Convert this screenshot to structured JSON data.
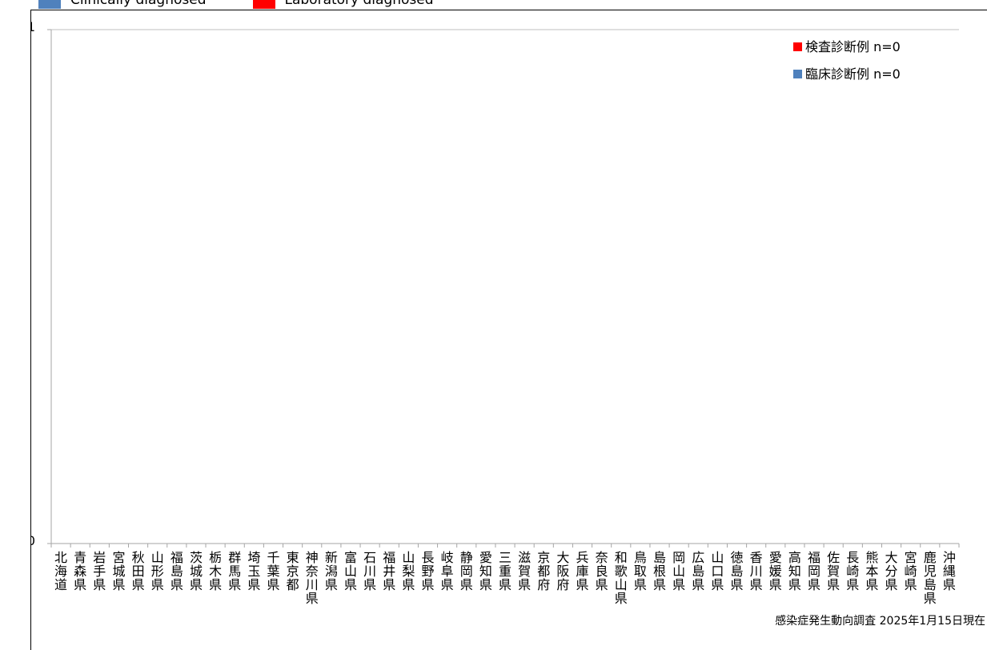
{
  "top_legend": {
    "items": [
      {
        "label": "Clinically diagnosed",
        "color": "#4f81bd"
      },
      {
        "label": "Laboratory diagnosed",
        "color": "#ff0000"
      }
    ]
  },
  "chart_data": {
    "type": "bar",
    "stacked": true,
    "categories": [
      "北海道",
      "青森県",
      "岩手県",
      "宮城県",
      "秋田県",
      "山形県",
      "福島県",
      "茨城県",
      "栃木県",
      "群馬県",
      "埼玉県",
      "千葉県",
      "東京都",
      "神奈川県",
      "新潟県",
      "富山県",
      "石川県",
      "福井県",
      "山梨県",
      "長野県",
      "岐阜県",
      "静岡県",
      "愛知県",
      "三重県",
      "滋賀県",
      "京都府",
      "大阪府",
      "兵庫県",
      "奈良県",
      "和歌山県",
      "鳥取県",
      "島根県",
      "岡山県",
      "広島県",
      "山口県",
      "徳島県",
      "香川県",
      "愛媛県",
      "高知県",
      "福岡県",
      "佐賀県",
      "長崎県",
      "熊本県",
      "大分県",
      "宮崎県",
      "鹿児島県",
      "沖縄県"
    ],
    "series": [
      {
        "name": "検査診断例 n=0",
        "color": "#ff0000",
        "values": [
          0,
          0,
          0,
          0,
          0,
          0,
          0,
          0,
          0,
          0,
          0,
          0,
          0,
          0,
          0,
          0,
          0,
          0,
          0,
          0,
          0,
          0,
          0,
          0,
          0,
          0,
          0,
          0,
          0,
          0,
          0,
          0,
          0,
          0,
          0,
          0,
          0,
          0,
          0,
          0,
          0,
          0,
          0,
          0,
          0,
          0,
          0
        ]
      },
      {
        "name": "臨床診断例 n=0",
        "color": "#4f81bd",
        "values": [
          0,
          0,
          0,
          0,
          0,
          0,
          0,
          0,
          0,
          0,
          0,
          0,
          0,
          0,
          0,
          0,
          0,
          0,
          0,
          0,
          0,
          0,
          0,
          0,
          0,
          0,
          0,
          0,
          0,
          0,
          0,
          0,
          0,
          0,
          0,
          0,
          0,
          0,
          0,
          0,
          0,
          0,
          0,
          0,
          0,
          0,
          0
        ]
      }
    ],
    "ylim": [
      0,
      1
    ],
    "yticks": [
      "0",
      "1"
    ],
    "legend_position": "top-right",
    "grid": false
  },
  "footer_note": "感染症発生動向調査 2025年1月15日現在"
}
